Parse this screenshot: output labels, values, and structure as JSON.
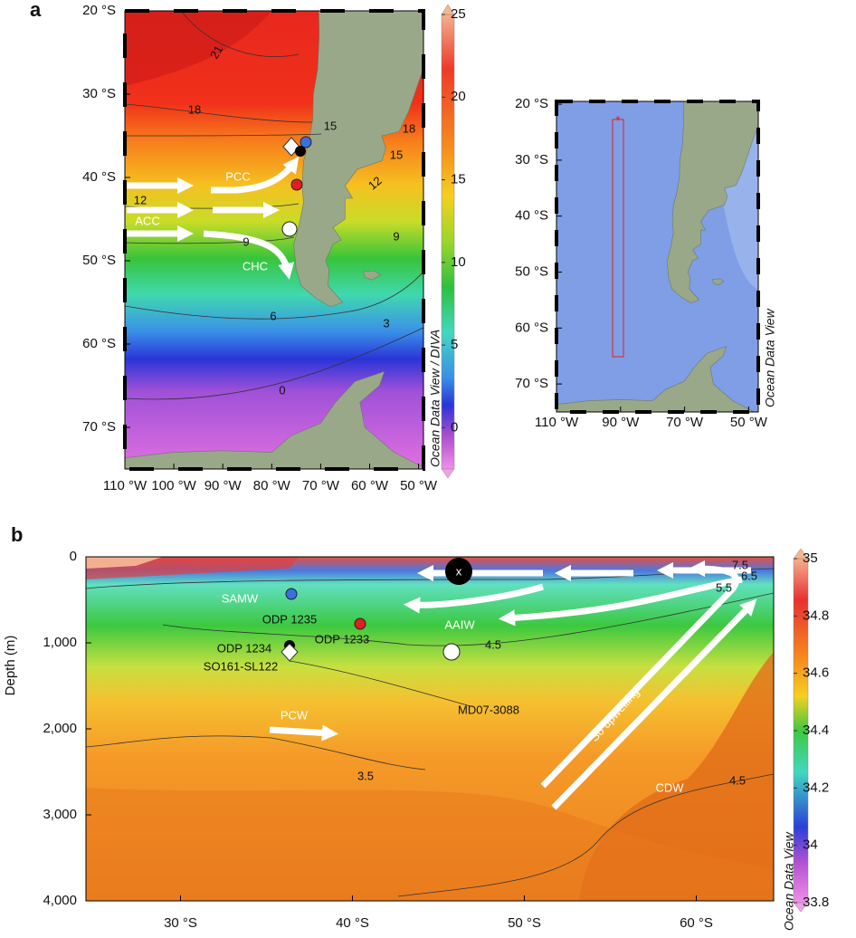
{
  "chart_data": [
    {
      "type": "map",
      "panel_label": "a",
      "xlim": [
        -110,
        -49
      ],
      "ylim": [
        -75,
        -20
      ],
      "xticks": [
        {
          "value": -110,
          "label": "110 °W"
        },
        {
          "value": -100,
          "label": "100 °W"
        },
        {
          "value": -90,
          "label": "90 °W"
        },
        {
          "value": -80,
          "label": "80 °W"
        },
        {
          "value": -70,
          "label": "70 °W"
        },
        {
          "value": -60,
          "label": "60 °W"
        },
        {
          "value": -50,
          "label": "50 °W"
        }
      ],
      "yticks": [
        {
          "value": -20,
          "label": "20 °S"
        },
        {
          "value": -30,
          "label": "30 °S"
        },
        {
          "value": -40,
          "label": "40 °S"
        },
        {
          "value": -50,
          "label": "50 °S"
        },
        {
          "value": -60,
          "label": "60 °S"
        },
        {
          "value": -70,
          "label": "70 °S"
        }
      ],
      "colorbar": {
        "label": "Ocean Data View / DIVA",
        "lim": [
          -2.5,
          25
        ],
        "ticks": [
          0,
          5,
          10,
          15,
          20,
          25
        ]
      },
      "contour_labels": [
        21,
        18,
        15,
        12,
        9,
        6,
        3,
        0,
        18,
        15,
        12,
        9
      ],
      "annotations": [
        "PCC",
        "ACC",
        "CHC"
      ]
    },
    {
      "type": "map",
      "xlim": [
        -110,
        -47
      ],
      "ylim": [
        -75,
        -19.5
      ],
      "xticks": [
        {
          "value": -110,
          "label": "110 °W"
        },
        {
          "value": -90,
          "label": "90 °W"
        },
        {
          "value": -70,
          "label": "70 °W"
        },
        {
          "value": -50,
          "label": "50 °W"
        }
      ],
      "yticks": [
        {
          "value": -20,
          "label": "20 °S"
        },
        {
          "value": -30,
          "label": "30 °S"
        },
        {
          "value": -40,
          "label": "40 °S"
        },
        {
          "value": -50,
          "label": "50 °S"
        },
        {
          "value": -60,
          "label": "60 °S"
        },
        {
          "value": -70,
          "label": "70 °S"
        }
      ],
      "side_label": "Ocean Data View"
    },
    {
      "type": "section",
      "panel_label": "b",
      "xlim": [
        24.5,
        64.5
      ],
      "ylim": [
        4000,
        0
      ],
      "ylabel": "Depth (m)",
      "xticks": [
        {
          "value": 30,
          "label": "30 °S"
        },
        {
          "value": 40,
          "label": "40 °S"
        },
        {
          "value": 50,
          "label": "50 °S"
        },
        {
          "value": 60,
          "label": "60 °S"
        }
      ],
      "yticks": [
        0,
        {
          "value": 1000,
          "label": "1,000"
        },
        {
          "value": 2000,
          "label": "2,000"
        },
        {
          "value": 3000,
          "label": "3,000"
        },
        {
          "value": 4000,
          "label": "4,000"
        }
      ],
      "colorbar": {
        "label": "Ocean Data View",
        "lim": [
          33.8,
          35
        ],
        "ticks": [
          33.8,
          34,
          34.2,
          34.4,
          34.6,
          34.8,
          35
        ]
      },
      "contour_labels": [
        7.5,
        6.5,
        5.5,
        4.5,
        3.5,
        4.5
      ],
      "annotations": [
        "SAMW",
        "ODP 1235",
        "ODP 1233",
        "ODP 1234",
        "SO161-SL122",
        "MD07-3088",
        "AAIW",
        "PCW",
        "CDW",
        "So upwelling",
        "x"
      ]
    }
  ]
}
